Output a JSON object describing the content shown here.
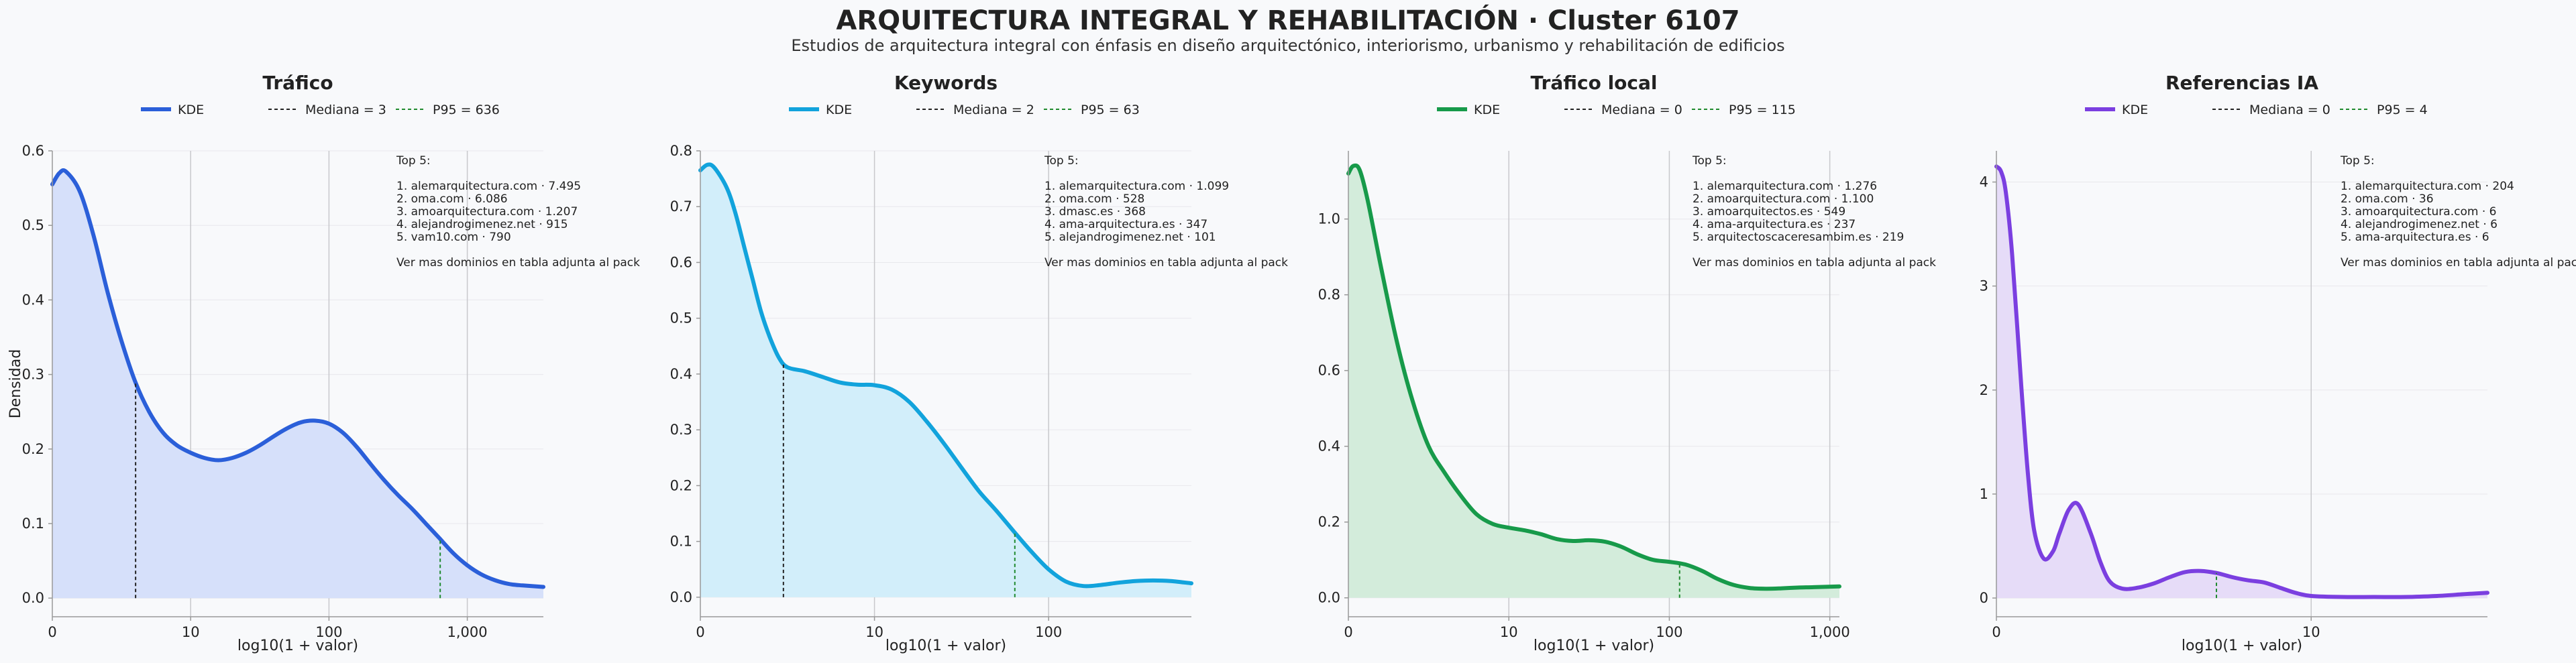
{
  "page": {
    "title": "ARQUITECTURA INTEGRAL Y REHABILITACIÓN · Cluster 6107",
    "subtitle": "Estudios de arquitectura integral con énfasis en diseño arquitectónico, interiorismo, urbanismo y rehabilitación de edificios"
  },
  "chart_data": [
    {
      "type": "area",
      "title": "Tráfico",
      "xlabel": "log10(1 + valor)",
      "ylabel": "Densidad",
      "color": "#2b5fd9",
      "fill": "#d6e0fa",
      "xlim": [
        0,
        3.55
      ],
      "ylim": [
        -0.025,
        0.6
      ],
      "xticks": [
        {
          "v": 0,
          "label": "0"
        },
        {
          "v": 1,
          "label": "10"
        },
        {
          "v": 2,
          "label": "100"
        },
        {
          "v": 3,
          "label": "1,000"
        }
      ],
      "yticks": [
        {
          "v": 0,
          "label": "0.0"
        },
        {
          "v": 0.1,
          "label": "0.1"
        },
        {
          "v": 0.2,
          "label": "0.2"
        },
        {
          "v": 0.3,
          "label": "0.3"
        },
        {
          "v": 0.4,
          "label": "0.4"
        },
        {
          "v": 0.5,
          "label": "0.5"
        },
        {
          "v": 0.6,
          "label": "0.6"
        }
      ],
      "legend": [
        {
          "kind": "kde",
          "label": "KDE"
        },
        {
          "kind": "median",
          "label": "Mediana = 3"
        },
        {
          "kind": "p95",
          "label": "P95 = 636"
        }
      ],
      "median_x": 0.602,
      "p95_x": 2.804,
      "x": [
        0,
        0.05,
        0.1,
        0.2,
        0.3,
        0.4,
        0.5,
        0.6,
        0.7,
        0.8,
        0.9,
        1.0,
        1.1,
        1.2,
        1.3,
        1.4,
        1.5,
        1.6,
        1.7,
        1.8,
        1.9,
        2.0,
        2.1,
        2.2,
        2.3,
        2.4,
        2.5,
        2.6,
        2.7,
        2.8,
        2.9,
        3.0,
        3.1,
        3.2,
        3.3,
        3.4,
        3.55
      ],
      "y": [
        0.555,
        0.57,
        0.572,
        0.545,
        0.485,
        0.41,
        0.345,
        0.29,
        0.25,
        0.222,
        0.205,
        0.195,
        0.188,
        0.185,
        0.188,
        0.195,
        0.205,
        0.217,
        0.228,
        0.236,
        0.238,
        0.234,
        0.222,
        0.203,
        0.18,
        0.158,
        0.138,
        0.12,
        0.1,
        0.08,
        0.06,
        0.044,
        0.032,
        0.024,
        0.019,
        0.017,
        0.015
      ],
      "top5_header": "Top 5:",
      "top5": [
        "1. alemarquitectura.com · 7.495",
        "2. oma.com · 6.086",
        "3. amoarquitectura.com · 1.207",
        "4. alejandrogimenez.net · 915",
        "5. vam10.com · 790"
      ],
      "more": "Ver mas dominios en tabla adjunta al pack"
    },
    {
      "type": "area",
      "title": "Keywords",
      "xlabel": "log10(1 + valor)",
      "ylabel": "",
      "color": "#12a3dc",
      "fill": "#d2eefa",
      "xlim": [
        0,
        2.82
      ],
      "ylim": [
        -0.035,
        0.8
      ],
      "xticks": [
        {
          "v": 0,
          "label": "0"
        },
        {
          "v": 1,
          "label": "10"
        },
        {
          "v": 2,
          "label": "100"
        }
      ],
      "yticks": [
        {
          "v": 0,
          "label": "0.0"
        },
        {
          "v": 0.1,
          "label": "0.1"
        },
        {
          "v": 0.2,
          "label": "0.2"
        },
        {
          "v": 0.3,
          "label": "0.3"
        },
        {
          "v": 0.4,
          "label": "0.4"
        },
        {
          "v": 0.5,
          "label": "0.5"
        },
        {
          "v": 0.6,
          "label": "0.6"
        },
        {
          "v": 0.7,
          "label": "0.7"
        },
        {
          "v": 0.8,
          "label": "0.8"
        }
      ],
      "legend": [
        {
          "kind": "kde",
          "label": "KDE"
        },
        {
          "kind": "median",
          "label": "Mediana = 2"
        },
        {
          "kind": "p95",
          "label": "P95 = 63"
        }
      ],
      "median_x": 0.477,
      "p95_x": 1.806,
      "x": [
        0,
        0.04,
        0.08,
        0.15,
        0.2,
        0.25,
        0.3,
        0.35,
        0.4,
        0.45,
        0.5,
        0.6,
        0.7,
        0.8,
        0.9,
        1.0,
        1.1,
        1.2,
        1.3,
        1.4,
        1.5,
        1.6,
        1.7,
        1.8,
        1.9,
        2.0,
        2.1,
        2.2,
        2.3,
        2.4,
        2.5,
        2.6,
        2.7,
        2.82
      ],
      "y": [
        0.765,
        0.775,
        0.77,
        0.735,
        0.69,
        0.63,
        0.57,
        0.51,
        0.465,
        0.43,
        0.412,
        0.405,
        0.395,
        0.385,
        0.381,
        0.38,
        0.372,
        0.35,
        0.315,
        0.275,
        0.232,
        0.19,
        0.155,
        0.118,
        0.082,
        0.05,
        0.028,
        0.02,
        0.022,
        0.026,
        0.029,
        0.03,
        0.029,
        0.025
      ],
      "top5_header": "Top 5:",
      "top5": [
        "1. alemarquitectura.com · 1.099",
        "2. oma.com · 528",
        "3. dmasc.es · 368",
        "4. ama-arquitectura.es · 347",
        "5. alejandrogimenez.net · 101"
      ],
      "more": "Ver mas dominios en tabla adjunta al pack"
    },
    {
      "type": "area",
      "title": "Tráfico local",
      "xlabel": "log10(1 + valor)",
      "ylabel": "",
      "color": "#179a4a",
      "fill": "#d3ecdb",
      "xlim": [
        0,
        3.06
      ],
      "ylim": [
        -0.05,
        1.18
      ],
      "xticks": [
        {
          "v": 0,
          "label": "0"
        },
        {
          "v": 1,
          "label": "10"
        },
        {
          "v": 2,
          "label": "100"
        },
        {
          "v": 3,
          "label": "1,000"
        }
      ],
      "yticks": [
        {
          "v": 0,
          "label": "0.0"
        },
        {
          "v": 0.2,
          "label": "0.2"
        },
        {
          "v": 0.4,
          "label": "0.4"
        },
        {
          "v": 0.6,
          "label": "0.6"
        },
        {
          "v": 0.8,
          "label": "0.8"
        },
        {
          "v": 1.0,
          "label": "1.0"
        }
      ],
      "legend": [
        {
          "kind": "kde",
          "label": "KDE"
        },
        {
          "kind": "median",
          "label": "Mediana = 0"
        },
        {
          "kind": "p95",
          "label": "P95 = 115"
        }
      ],
      "median_x": 0,
      "p95_x": 2.064,
      "x": [
        0,
        0.03,
        0.07,
        0.12,
        0.2,
        0.3,
        0.4,
        0.5,
        0.6,
        0.7,
        0.8,
        0.9,
        1.0,
        1.1,
        1.2,
        1.3,
        1.4,
        1.5,
        1.6,
        1.7,
        1.8,
        1.9,
        2.0,
        2.1,
        2.2,
        2.3,
        2.4,
        2.5,
        2.6,
        2.7,
        2.8,
        2.9,
        3.06
      ],
      "y": [
        1.12,
        1.14,
        1.13,
        1.05,
        0.88,
        0.68,
        0.52,
        0.4,
        0.33,
        0.27,
        0.22,
        0.195,
        0.185,
        0.178,
        0.168,
        0.155,
        0.15,
        0.152,
        0.148,
        0.135,
        0.115,
        0.1,
        0.095,
        0.088,
        0.072,
        0.05,
        0.034,
        0.026,
        0.024,
        0.025,
        0.027,
        0.028,
        0.03
      ],
      "top5_header": "Top 5:",
      "top5": [
        "1. alemarquitectura.com · 1.276",
        "2. amoarquitectura.com · 1.100",
        "3. amoarquitectos.es · 549",
        "4. ama-arquitectura.es · 237",
        "5. arquitectoscaceresambim.es · 219"
      ],
      "more": "Ver mas dominios en tabla adjunta al pack"
    },
    {
      "type": "area",
      "title": "Referencias IA",
      "xlabel": "log10(1 + valor)",
      "ylabel": "",
      "color": "#7b3fe0",
      "fill": "#e6dcf8",
      "xlim": [
        0,
        1.56
      ],
      "ylim": [
        -0.18,
        4.3
      ],
      "xticks": [
        {
          "v": 0,
          "label": "0"
        },
        {
          "v": 1,
          "label": "10"
        }
      ],
      "yticks": [
        {
          "v": 0,
          "label": "0"
        },
        {
          "v": 1,
          "label": "1"
        },
        {
          "v": 2,
          "label": "2"
        },
        {
          "v": 3,
          "label": "3"
        },
        {
          "v": 4,
          "label": "4"
        }
      ],
      "legend": [
        {
          "kind": "kde",
          "label": "KDE"
        },
        {
          "kind": "median",
          "label": "Mediana = 0"
        },
        {
          "kind": "p95",
          "label": "P95 = 4"
        }
      ],
      "median_x": 0,
      "p95_x": 0.699,
      "x": [
        0,
        0.015,
        0.03,
        0.05,
        0.08,
        0.1,
        0.12,
        0.15,
        0.18,
        0.2,
        0.23,
        0.26,
        0.3,
        0.33,
        0.36,
        0.4,
        0.45,
        0.5,
        0.55,
        0.6,
        0.65,
        0.7,
        0.75,
        0.8,
        0.85,
        0.9,
        0.95,
        1.0,
        1.1,
        1.2,
        1.3,
        1.4,
        1.5,
        1.56
      ],
      "y": [
        4.15,
        4.1,
        3.9,
        3.3,
        2.0,
        1.2,
        0.65,
        0.38,
        0.45,
        0.62,
        0.85,
        0.9,
        0.62,
        0.35,
        0.16,
        0.09,
        0.1,
        0.14,
        0.2,
        0.25,
        0.26,
        0.24,
        0.2,
        0.17,
        0.15,
        0.1,
        0.05,
        0.02,
        0.01,
        0.01,
        0.01,
        0.02,
        0.04,
        0.05
      ],
      "top5_header": "Top 5:",
      "top5": [
        "1. alemarquitectura.com · 204",
        "2. oma.com · 36",
        "3. amoarquitectura.com · 6",
        "4. alejandrogimenez.net · 6",
        "5. ama-arquitectura.es · 6"
      ],
      "more": "Ver mas dominios en tabla adjunta al pack"
    }
  ]
}
